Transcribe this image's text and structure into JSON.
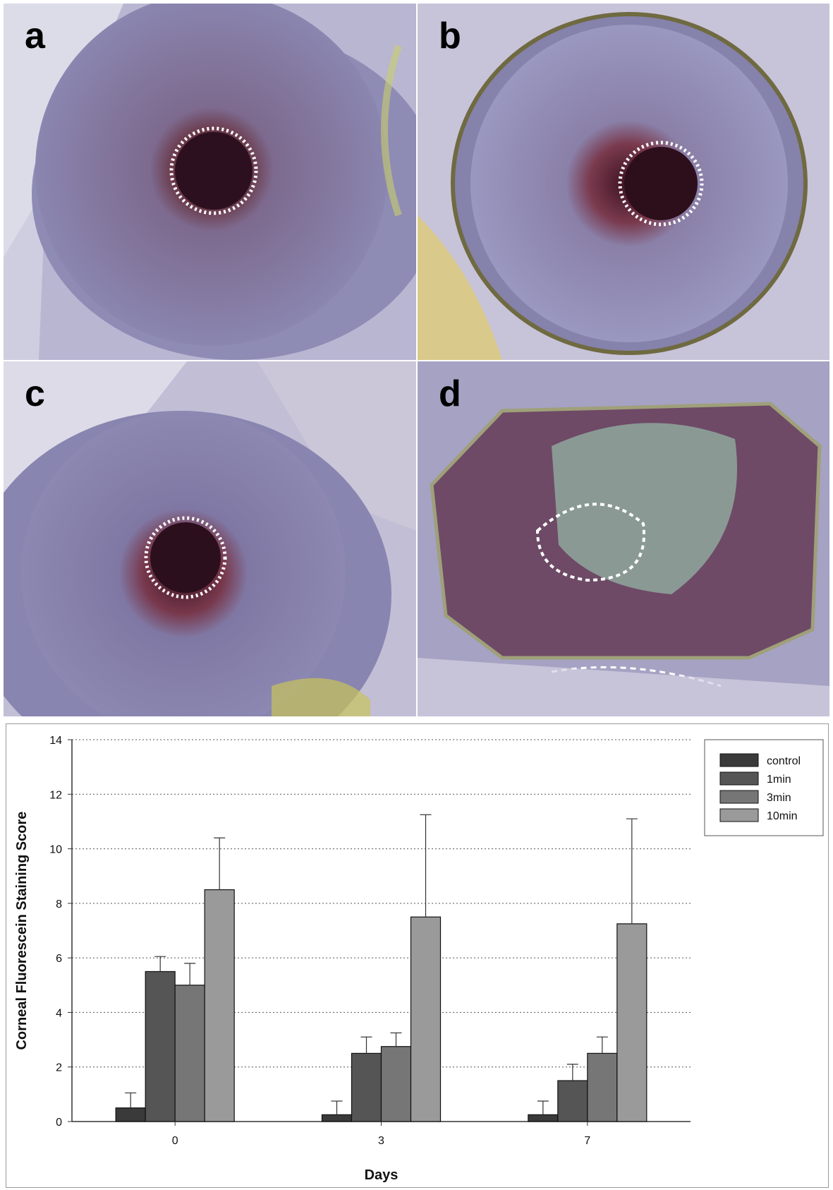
{
  "panels": [
    {
      "letter": "a"
    },
    {
      "letter": "b"
    },
    {
      "letter": "c"
    },
    {
      "letter": "d"
    }
  ],
  "chart_data": {
    "type": "bar",
    "categories": [
      "0",
      "3",
      "7"
    ],
    "xlabel": "Days",
    "ylabel": "Corneal Fluorescein Staining Score",
    "ylim": [
      0,
      14
    ],
    "yticks": [
      0,
      2,
      4,
      6,
      8,
      10,
      12,
      14
    ],
    "grid": true,
    "legend_position": "top-right",
    "series": [
      {
        "name": "control",
        "color": "#3a3a3a",
        "values": [
          0.5,
          0.25,
          0.25
        ],
        "errors": [
          0.55,
          0.5,
          0.5
        ]
      },
      {
        "name": "1min",
        "color": "#555555",
        "values": [
          5.5,
          2.5,
          1.5
        ],
        "errors": [
          0.55,
          0.6,
          0.6
        ]
      },
      {
        "name": "3min",
        "color": "#767676",
        "values": [
          5.0,
          2.75,
          2.5
        ],
        "errors": [
          0.8,
          0.5,
          0.6
        ]
      },
      {
        "name": "10min",
        "color": "#9a9a9a",
        "values": [
          8.5,
          7.5,
          7.25
        ],
        "errors": [
          1.9,
          3.75,
          3.85
        ]
      }
    ]
  }
}
